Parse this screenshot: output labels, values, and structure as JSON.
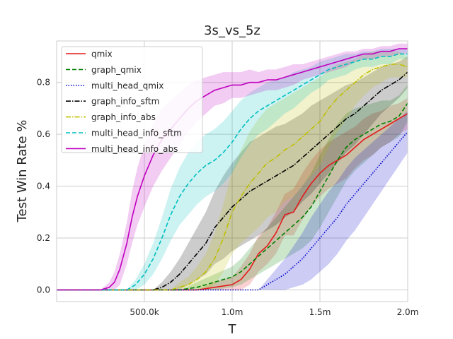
{
  "chart_data": {
    "type": "line",
    "title": "3s_vs_5z",
    "xlabel": "T",
    "ylabel": "Test Win Rate %",
    "xlim": [
      0,
      2000000
    ],
    "ylim": [
      -0.045,
      0.96
    ],
    "x_ticks": [
      {
        "value": 500000,
        "label": "500.0k"
      },
      {
        "value": 1000000,
        "label": "1.0m"
      },
      {
        "value": 1500000,
        "label": "1.5m"
      },
      {
        "value": 2000000,
        "label": "2.0m"
      }
    ],
    "y_ticks": [
      {
        "value": 0.0,
        "label": "0.0"
      },
      {
        "value": 0.2,
        "label": "0.2"
      },
      {
        "value": 0.4,
        "label": "0.4"
      },
      {
        "value": 0.6,
        "label": "0.6"
      },
      {
        "value": 0.8,
        "label": "0.8"
      }
    ],
    "grid": true,
    "legend": "upper-left",
    "series": [
      {
        "name": "qmix",
        "color": "#e41a1c",
        "dash": "solid",
        "x": [
          0,
          800000,
          900000,
          1000000,
          1050000,
          1100000,
          1150000,
          1200000,
          1250000,
          1300000,
          1350000,
          1400000,
          1450000,
          1500000,
          1550000,
          1600000,
          1650000,
          1700000,
          1750000,
          1800000,
          1850000,
          1900000,
          1950000,
          2000000
        ],
        "y": [
          0.0,
          0.0,
          0.01,
          0.02,
          0.04,
          0.08,
          0.14,
          0.17,
          0.22,
          0.29,
          0.3,
          0.36,
          0.41,
          0.45,
          0.48,
          0.5,
          0.52,
          0.55,
          0.58,
          0.6,
          0.62,
          0.64,
          0.66,
          0.68
        ],
        "band": [
          0.0,
          0.0,
          0.02,
          0.03,
          0.05,
          0.06,
          0.07,
          0.07,
          0.08,
          0.08,
          0.09,
          0.09,
          0.09,
          0.09,
          0.09,
          0.09,
          0.09,
          0.08,
          0.08,
          0.08,
          0.07,
          0.07,
          0.06,
          0.06
        ]
      },
      {
        "name": "graph_qmix",
        "color": "#008000",
        "dash": "6,3",
        "x": [
          0,
          700000,
          800000,
          900000,
          1000000,
          1050000,
          1100000,
          1150000,
          1200000,
          1250000,
          1300000,
          1350000,
          1400000,
          1450000,
          1500000,
          1550000,
          1600000,
          1650000,
          1700000,
          1750000,
          1800000,
          1850000,
          1900000,
          1950000,
          2000000
        ],
        "y": [
          0.0,
          0.0,
          0.01,
          0.03,
          0.05,
          0.07,
          0.1,
          0.13,
          0.16,
          0.19,
          0.22,
          0.25,
          0.28,
          0.32,
          0.38,
          0.44,
          0.5,
          0.55,
          0.58,
          0.6,
          0.62,
          0.64,
          0.65,
          0.67,
          0.72
        ],
        "band": [
          0.0,
          0.0,
          0.02,
          0.03,
          0.04,
          0.05,
          0.06,
          0.07,
          0.08,
          0.09,
          0.1,
          0.11,
          0.12,
          0.13,
          0.14,
          0.14,
          0.14,
          0.13,
          0.12,
          0.11,
          0.1,
          0.09,
          0.08,
          0.08,
          0.07
        ]
      },
      {
        "name": "multi_head_qmix",
        "color": "#0000cd",
        "dash": "1.5,2",
        "x": [
          0,
          1150000,
          1200000,
          1250000,
          1300000,
          1350000,
          1400000,
          1450000,
          1500000,
          1550000,
          1600000,
          1650000,
          1700000,
          1750000,
          1800000,
          1850000,
          1900000,
          1950000,
          2000000
        ],
        "y": [
          0.0,
          0.0,
          0.02,
          0.04,
          0.06,
          0.09,
          0.12,
          0.16,
          0.2,
          0.24,
          0.28,
          0.33,
          0.37,
          0.41,
          0.45,
          0.49,
          0.53,
          0.57,
          0.61
        ],
        "band": [
          0.0,
          0.0,
          0.02,
          0.04,
          0.06,
          0.08,
          0.1,
          0.12,
          0.13,
          0.14,
          0.14,
          0.14,
          0.14,
          0.13,
          0.12,
          0.11,
          0.1,
          0.09,
          0.08
        ]
      },
      {
        "name": "graph_info_sftm",
        "color": "#000000",
        "dash": "7,2,1.5,2",
        "x": [
          0,
          550000,
          600000,
          650000,
          700000,
          750000,
          800000,
          850000,
          900000,
          950000,
          1000000,
          1050000,
          1100000,
          1150000,
          1200000,
          1250000,
          1300000,
          1350000,
          1400000,
          1450000,
          1500000,
          1550000,
          1600000,
          1650000,
          1700000,
          1750000,
          1800000,
          1850000,
          1900000,
          1950000,
          2000000
        ],
        "y": [
          0.0,
          0.0,
          0.01,
          0.03,
          0.06,
          0.1,
          0.14,
          0.18,
          0.24,
          0.28,
          0.32,
          0.35,
          0.38,
          0.4,
          0.42,
          0.44,
          0.46,
          0.48,
          0.51,
          0.54,
          0.57,
          0.6,
          0.63,
          0.66,
          0.68,
          0.71,
          0.74,
          0.77,
          0.79,
          0.81,
          0.84
        ],
        "band": [
          0.0,
          0.0,
          0.02,
          0.04,
          0.06,
          0.08,
          0.1,
          0.12,
          0.14,
          0.16,
          0.17,
          0.18,
          0.19,
          0.19,
          0.19,
          0.19,
          0.18,
          0.18,
          0.17,
          0.17,
          0.16,
          0.15,
          0.14,
          0.13,
          0.12,
          0.11,
          0.1,
          0.09,
          0.08,
          0.07,
          0.06
        ]
      },
      {
        "name": "graph_info_abs",
        "color": "#bfbf00",
        "dash": "7,2,1.5,2",
        "x": [
          0,
          650000,
          700000,
          750000,
          800000,
          850000,
          900000,
          950000,
          1000000,
          1050000,
          1100000,
          1150000,
          1200000,
          1250000,
          1300000,
          1350000,
          1400000,
          1450000,
          1500000,
          1550000,
          1600000,
          1650000,
          1700000,
          1750000,
          1800000,
          1850000,
          1900000,
          1950000,
          2000000
        ],
        "y": [
          0.0,
          0.0,
          0.01,
          0.02,
          0.04,
          0.07,
          0.12,
          0.2,
          0.3,
          0.36,
          0.41,
          0.45,
          0.49,
          0.51,
          0.54,
          0.56,
          0.59,
          0.62,
          0.65,
          0.7,
          0.74,
          0.77,
          0.8,
          0.83,
          0.85,
          0.86,
          0.87,
          0.87,
          0.86
        ],
        "band": [
          0.0,
          0.0,
          0.02,
          0.03,
          0.05,
          0.07,
          0.1,
          0.13,
          0.16,
          0.18,
          0.2,
          0.21,
          0.21,
          0.21,
          0.2,
          0.2,
          0.19,
          0.18,
          0.17,
          0.15,
          0.13,
          0.11,
          0.09,
          0.08,
          0.07,
          0.06,
          0.05,
          0.05,
          0.04
        ]
      },
      {
        "name": "multi_head_info_sftm",
        "color": "#00bfbf",
        "dash": "6,3",
        "x": [
          0,
          400000,
          450000,
          500000,
          550000,
          600000,
          650000,
          700000,
          750000,
          800000,
          850000,
          900000,
          950000,
          1000000,
          1050000,
          1100000,
          1150000,
          1200000,
          1250000,
          1300000,
          1350000,
          1400000,
          1450000,
          1500000,
          1550000,
          1600000,
          1650000,
          1700000,
          1750000,
          1800000,
          1850000,
          1900000,
          1950000,
          2000000
        ],
        "y": [
          0.0,
          0.0,
          0.02,
          0.06,
          0.12,
          0.2,
          0.29,
          0.36,
          0.41,
          0.45,
          0.48,
          0.5,
          0.53,
          0.57,
          0.62,
          0.66,
          0.69,
          0.71,
          0.73,
          0.75,
          0.77,
          0.79,
          0.81,
          0.83,
          0.85,
          0.86,
          0.87,
          0.88,
          0.89,
          0.89,
          0.9,
          0.9,
          0.91,
          0.91
        ],
        "band": [
          0.0,
          0.0,
          0.02,
          0.04,
          0.06,
          0.08,
          0.1,
          0.11,
          0.12,
          0.12,
          0.12,
          0.12,
          0.12,
          0.12,
          0.11,
          0.1,
          0.09,
          0.09,
          0.08,
          0.07,
          0.07,
          0.06,
          0.05,
          0.05,
          0.04,
          0.04,
          0.04,
          0.03,
          0.03,
          0.03,
          0.03,
          0.03,
          0.02,
          0.02
        ]
      },
      {
        "name": "multi_head_info_abs",
        "color": "#bf00bf",
        "dash": "solid",
        "x": [
          0,
          250000,
          300000,
          330000,
          360000,
          400000,
          430000,
          460000,
          500000,
          550000,
          600000,
          650000,
          700000,
          750000,
          800000,
          850000,
          900000,
          950000,
          1000000,
          1050000,
          1100000,
          1150000,
          1200000,
          1250000,
          1300000,
          1350000,
          1400000,
          1450000,
          1500000,
          1550000,
          1600000,
          1650000,
          1700000,
          1750000,
          1800000,
          1850000,
          1900000,
          1950000,
          2000000
        ],
        "y": [
          0.0,
          0.0,
          0.01,
          0.03,
          0.08,
          0.18,
          0.28,
          0.36,
          0.44,
          0.52,
          0.58,
          0.62,
          0.66,
          0.7,
          0.73,
          0.75,
          0.77,
          0.78,
          0.79,
          0.79,
          0.8,
          0.8,
          0.81,
          0.81,
          0.82,
          0.83,
          0.84,
          0.85,
          0.86,
          0.87,
          0.88,
          0.89,
          0.9,
          0.91,
          0.91,
          0.92,
          0.92,
          0.93,
          0.93
        ],
        "band": [
          0.0,
          0.0,
          0.02,
          0.04,
          0.06,
          0.08,
          0.1,
          0.11,
          0.12,
          0.12,
          0.12,
          0.11,
          0.1,
          0.09,
          0.08,
          0.07,
          0.06,
          0.06,
          0.05,
          0.05,
          0.05,
          0.04,
          0.04,
          0.04,
          0.04,
          0.04,
          0.03,
          0.03,
          0.03,
          0.03,
          0.03,
          0.03,
          0.02,
          0.02,
          0.02,
          0.02,
          0.02,
          0.02,
          0.02
        ]
      }
    ]
  }
}
